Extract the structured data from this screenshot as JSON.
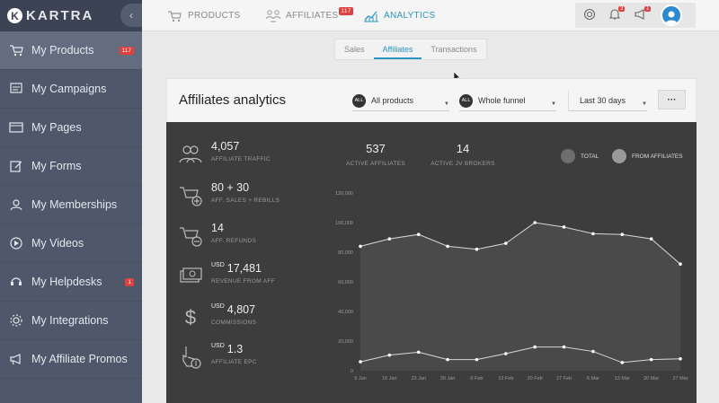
{
  "brand": {
    "name": "KARTRA",
    "mark": "K"
  },
  "sidebar": {
    "items": [
      {
        "label": "My Products",
        "badge": "117",
        "icon": "cart-icon",
        "active": true
      },
      {
        "label": "My Campaigns",
        "icon": "campaign-icon"
      },
      {
        "label": "My Pages",
        "icon": "pages-icon"
      },
      {
        "label": "My Forms",
        "icon": "forms-icon"
      },
      {
        "label": "My Memberships",
        "icon": "memberships-icon"
      },
      {
        "label": "My Videos",
        "icon": "videos-icon"
      },
      {
        "label": "My Helpdesks",
        "badge": "1",
        "icon": "helpdesk-icon"
      },
      {
        "label": "My Integrations",
        "icon": "integrations-icon"
      },
      {
        "label": "My Affiliate Promos",
        "icon": "megaphone-icon"
      }
    ]
  },
  "topnav": {
    "products": "PRODUCTS",
    "affiliates": "AFFILIATES",
    "affiliates_badge": "117",
    "analytics": "ANALYTICS",
    "notifications_badge": "3",
    "messages_badge": "1"
  },
  "subtabs": [
    "Sales",
    "Affiliates",
    "Transactions"
  ],
  "panel": {
    "title": "Affiliates analytics",
    "filter_all": "ALL",
    "product_filter": "All products",
    "funnel_filter": "Whole funnel",
    "date_filter": "Last 30 days",
    "more": "···"
  },
  "stats": [
    {
      "value": "4,057",
      "label": "AFFILIATE TRAFFIC",
      "icon": "users-icon"
    },
    {
      "value": "80 + 30",
      "label": "AFF. SALES + REBILLS",
      "icon": "cart-plus-icon"
    },
    {
      "value": "14",
      "label": "AFF. REFUNDS",
      "icon": "cart-minus-icon"
    },
    {
      "currency": "USD",
      "value": "17,481",
      "label": "REVENUE FROM AFF",
      "icon": "money-icon"
    },
    {
      "currency": "USD",
      "value": "4,807",
      "label": "COMMISSIONS",
      "icon": "dollar-icon"
    },
    {
      "currency": "USD",
      "value": "1.3",
      "label": "AFFILIATE EPC",
      "icon": "click-dollar-icon"
    }
  ],
  "kpis": [
    {
      "value": "537",
      "label": "ACTIVE AFFILIATES"
    },
    {
      "value": "14",
      "label": "ACTIVE JV BROKERS"
    }
  ],
  "colors": {
    "accent": "#2a95c2",
    "badge": "#e2403f",
    "total": "#6e6e6e",
    "affiliates": "#9a9a9a"
  },
  "chart_data": {
    "type": "line",
    "x": [
      "9 Jan",
      "16 Jan",
      "23 Jan",
      "30 Jan",
      "6 Feb",
      "13 Feb",
      "20 Feb",
      "27 Feb",
      "6 Mar",
      "13 Mar",
      "20 Mar",
      "27 Mar"
    ],
    "series": [
      {
        "name": "TOTAL",
        "values": [
          84000,
          89000,
          92000,
          84000,
          82000,
          86000,
          100000,
          97000,
          92500,
          92000,
          89000,
          72000
        ]
      },
      {
        "name": "FROM AFFILIATES",
        "values": [
          6000,
          10500,
          12500,
          7500,
          7500,
          11500,
          16000,
          16000,
          13000,
          5500,
          7500,
          8000
        ]
      }
    ],
    "yticks": [
      "0",
      "20,000",
      "40,000",
      "60,000",
      "80,000",
      "100,000",
      "120,000"
    ],
    "ylim": [
      0,
      120000
    ],
    "legend": "top-right",
    "grid": false
  }
}
